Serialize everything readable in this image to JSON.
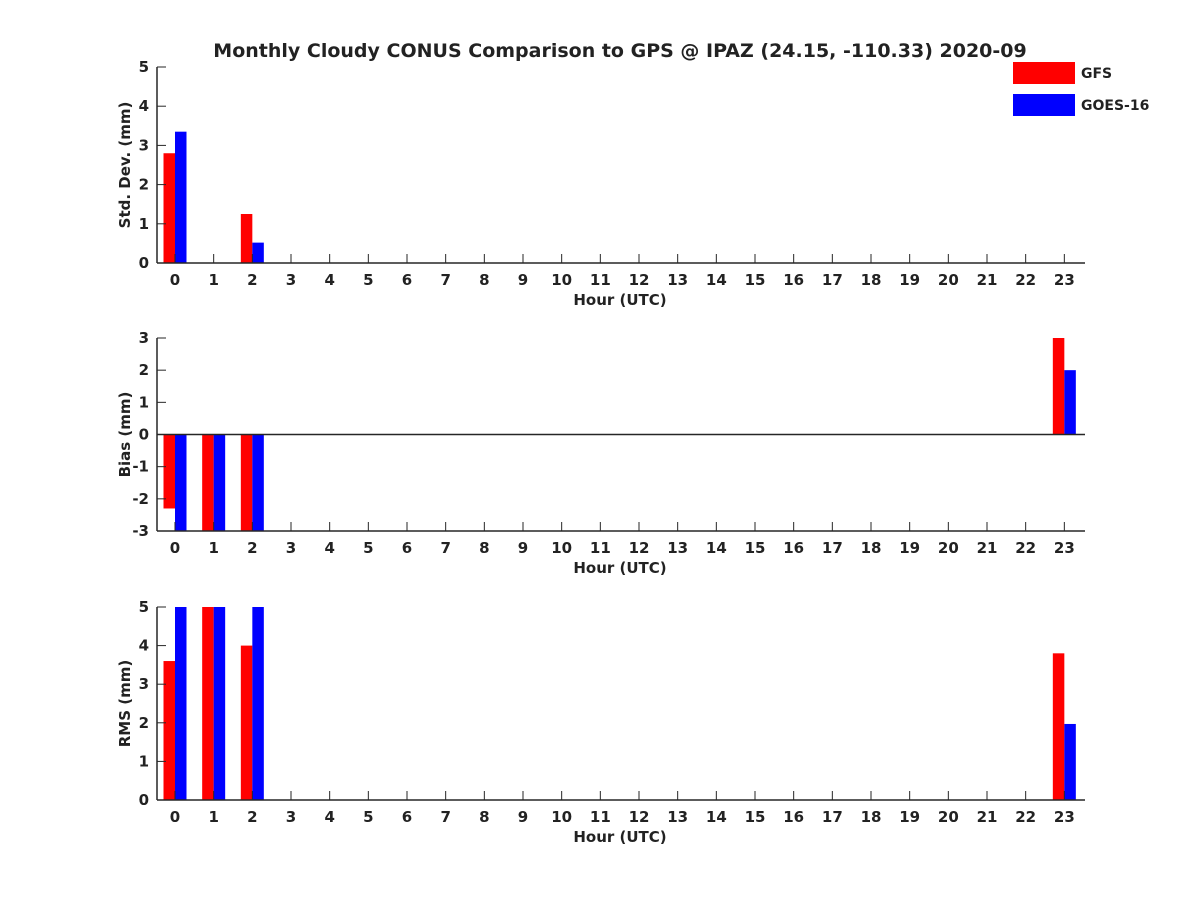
{
  "title": "Monthly Cloudy CONUS Comparison to GPS @ IPAZ (24.15, -110.33) 2020-09",
  "legend": {
    "placement": "top-right",
    "items": [
      {
        "label": "GFS",
        "color": "#ff0000"
      },
      {
        "label": "GOES-16",
        "color": "#0000ff"
      }
    ]
  },
  "chart_data": [
    {
      "type": "bar",
      "ylabel": "Std. Dev. (mm)",
      "xlabel": "Hour (UTC)",
      "ylim": [
        0,
        5
      ],
      "yticks": [
        0,
        1,
        2,
        3,
        4,
        5
      ],
      "categories": [
        "0",
        "1",
        "2",
        "3",
        "4",
        "5",
        "6",
        "7",
        "8",
        "9",
        "10",
        "11",
        "12",
        "13",
        "14",
        "15",
        "16",
        "17",
        "18",
        "19",
        "20",
        "21",
        "22",
        "23"
      ],
      "series": [
        {
          "name": "GFS",
          "color": "#ff0000",
          "values": [
            2.8,
            null,
            1.25,
            null,
            null,
            null,
            null,
            null,
            null,
            null,
            null,
            null,
            null,
            null,
            null,
            null,
            null,
            null,
            null,
            null,
            null,
            null,
            null,
            null
          ]
        },
        {
          "name": "GOES-16",
          "color": "#0000ff",
          "values": [
            3.35,
            null,
            0.52,
            null,
            null,
            null,
            null,
            null,
            null,
            null,
            null,
            null,
            null,
            null,
            null,
            null,
            null,
            null,
            null,
            null,
            null,
            null,
            null,
            null
          ]
        }
      ],
      "grid": false
    },
    {
      "type": "bar",
      "ylabel": "Bias (mm)",
      "xlabel": "Hour (UTC)",
      "ylim": [
        -3,
        3
      ],
      "yticks": [
        -3,
        -2,
        -1,
        0,
        1,
        2,
        3
      ],
      "categories": [
        "0",
        "1",
        "2",
        "3",
        "4",
        "5",
        "6",
        "7",
        "8",
        "9",
        "10",
        "11",
        "12",
        "13",
        "14",
        "15",
        "16",
        "17",
        "18",
        "19",
        "20",
        "21",
        "22",
        "23"
      ],
      "series": [
        {
          "name": "GFS",
          "color": "#ff0000",
          "values": [
            -2.3,
            -3,
            -3,
            null,
            null,
            null,
            null,
            null,
            null,
            null,
            null,
            null,
            null,
            null,
            null,
            null,
            null,
            null,
            null,
            null,
            null,
            null,
            null,
            3
          ]
        },
        {
          "name": "GOES-16",
          "color": "#0000ff",
          "values": [
            -3,
            -3,
            -3,
            null,
            null,
            null,
            null,
            null,
            null,
            null,
            null,
            null,
            null,
            null,
            null,
            null,
            null,
            null,
            null,
            null,
            null,
            null,
            null,
            2
          ]
        }
      ],
      "zero_line": true,
      "grid": false
    },
    {
      "type": "bar",
      "ylabel": "RMS (mm)",
      "xlabel": "Hour (UTC)",
      "ylim": [
        0,
        5
      ],
      "yticks": [
        0,
        1,
        2,
        3,
        4,
        5
      ],
      "categories": [
        "0",
        "1",
        "2",
        "3",
        "4",
        "5",
        "6",
        "7",
        "8",
        "9",
        "10",
        "11",
        "12",
        "13",
        "14",
        "15",
        "16",
        "17",
        "18",
        "19",
        "20",
        "21",
        "22",
        "23"
      ],
      "series": [
        {
          "name": "GFS",
          "color": "#ff0000",
          "values": [
            3.6,
            5,
            4,
            null,
            null,
            null,
            null,
            null,
            null,
            null,
            null,
            null,
            null,
            null,
            null,
            null,
            null,
            null,
            null,
            null,
            null,
            null,
            null,
            3.8
          ]
        },
        {
          "name": "GOES-16",
          "color": "#0000ff",
          "values": [
            5,
            5,
            5,
            null,
            null,
            null,
            null,
            null,
            null,
            null,
            null,
            null,
            null,
            null,
            null,
            null,
            null,
            null,
            null,
            null,
            null,
            null,
            null,
            1.97
          ]
        }
      ],
      "grid": false
    }
  ]
}
